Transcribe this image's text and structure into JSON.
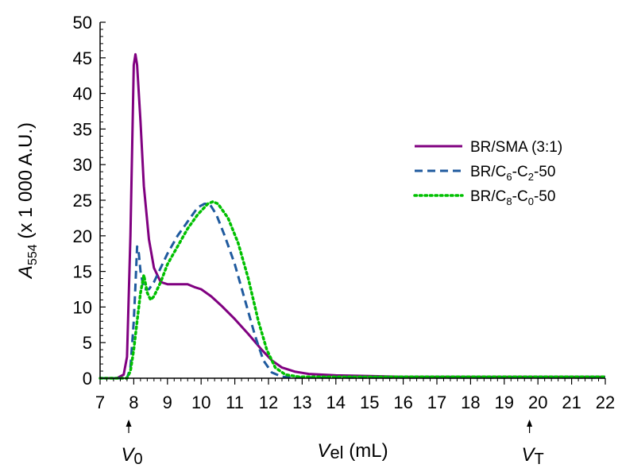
{
  "chart_data": {
    "type": "line",
    "xlabel": {
      "var": "V",
      "sub": "el",
      "unit": " (mL)"
    },
    "ylabel": {
      "var": "A",
      "sub": "554",
      "unit": " (x 1 000 A.U.)"
    },
    "xlim": [
      7,
      22
    ],
    "ylim": [
      0,
      50
    ],
    "xticks": [
      "7",
      "8",
      "9",
      "10",
      "11",
      "12",
      "13",
      "14",
      "15",
      "16",
      "17",
      "18",
      "19",
      "20",
      "21",
      "22"
    ],
    "yticks": [
      "0",
      "5",
      "10",
      "15",
      "20",
      "25",
      "30",
      "35",
      "40",
      "45",
      "50"
    ],
    "markers": [
      {
        "var": "V",
        "sub": "0",
        "x": 7.85
      },
      {
        "var": "V",
        "sub": "T",
        "x": 19.75
      }
    ],
    "legend_position": "right",
    "series": [
      {
        "legend": {
          "text": "BR/SMA (3:1)"
        },
        "color": "#800080",
        "style": "solid",
        "x": [
          7,
          7.5,
          7.7,
          7.8,
          7.9,
          8.0,
          8.05,
          8.1,
          8.2,
          8.3,
          8.45,
          8.6,
          8.8,
          9.0,
          9.3,
          9.6,
          9.8,
          10.0,
          10.3,
          10.6,
          11.0,
          11.4,
          11.8,
          12.1,
          12.4,
          12.8,
          13.2,
          14.0,
          15.0,
          16.0,
          17.0,
          18.0,
          19.0,
          20.0,
          21.0,
          22.0
        ],
        "y": [
          0,
          0,
          0.5,
          3,
          20,
          44,
          45.5,
          44,
          36,
          27,
          19.5,
          15.5,
          13.5,
          13.2,
          13.2,
          13.2,
          12.8,
          12.5,
          11.5,
          10.2,
          8.3,
          6.2,
          4.0,
          2.5,
          1.5,
          0.9,
          0.6,
          0.4,
          0.3,
          0.2,
          0.2,
          0.2,
          0.2,
          0.2,
          0.2,
          0.2
        ]
      },
      {
        "legend": {
          "text": "BR/C",
          "sub1": "6",
          "mid": "-C",
          "sub2": "2",
          "tail": "-50"
        },
        "color": "#1f5a9e",
        "style": "dashed",
        "x": [
          7,
          7.8,
          7.9,
          8.0,
          8.05,
          8.1,
          8.15,
          8.2,
          8.3,
          8.45,
          8.6,
          8.8,
          9.0,
          9.3,
          9.6,
          9.9,
          10.1,
          10.25,
          10.45,
          10.7,
          11.0,
          11.3,
          11.6,
          11.85,
          12.1,
          12.4,
          12.8,
          13.2,
          14.0,
          16.0,
          18.0,
          20.0,
          22.0
        ],
        "y": [
          0,
          0,
          1.5,
          8,
          13,
          18.5,
          17.5,
          15,
          12.5,
          12.5,
          13.5,
          15.5,
          17.5,
          20,
          22,
          24,
          24.5,
          24.5,
          23,
          20,
          16,
          11,
          6,
          2.5,
          0.8,
          0.2,
          0.1,
          0.1,
          0.1,
          0.1,
          0.1,
          0.1,
          0.1
        ]
      },
      {
        "legend": {
          "text": "BR/C",
          "sub1": "8",
          "mid": "-C",
          "sub2": "0",
          "tail": "-50"
        },
        "color": "#00c000",
        "style": "dotted",
        "x": [
          7,
          7.8,
          7.9,
          8.0,
          8.1,
          8.2,
          8.3,
          8.4,
          8.5,
          8.6,
          8.8,
          9.0,
          9.3,
          9.6,
          9.9,
          10.2,
          10.35,
          10.5,
          10.8,
          11.1,
          11.4,
          11.7,
          11.95,
          12.2,
          12.5,
          12.9,
          13.5,
          14.0,
          16.0,
          18.0,
          20.0,
          22.0
        ],
        "y": [
          0,
          0,
          1,
          4,
          8,
          12,
          14.5,
          12,
          11,
          11.5,
          13.5,
          16,
          18.5,
          21,
          23,
          24.5,
          24.8,
          24.5,
          22.5,
          19,
          14,
          8,
          4,
          1.5,
          0.5,
          0.2,
          0.2,
          0.2,
          0.2,
          0.2,
          0.2,
          0.2
        ]
      }
    ]
  }
}
